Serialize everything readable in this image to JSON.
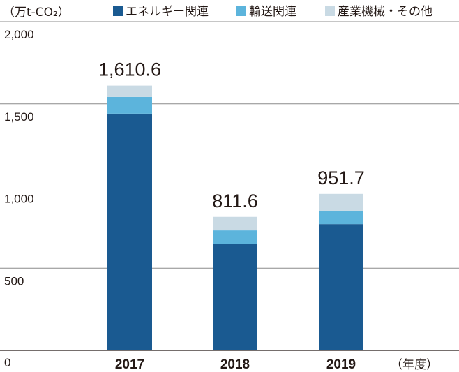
{
  "chart_data": {
    "type": "bar",
    "stacked": true,
    "ylabel": "（万t-CO₂）",
    "xunit": "（年度）",
    "categories": [
      "2017",
      "2018",
      "2019"
    ],
    "totals_labels": [
      "1,610.6",
      "811.6",
      "951.7"
    ],
    "series": [
      {
        "name": "エネルギー関連",
        "color": "#1a5a91",
        "values": [
          1440,
          648,
          768
        ]
      },
      {
        "name": "輸送関連",
        "color": "#5cb4dc",
        "values": [
          102,
          82,
          82
        ]
      },
      {
        "name": "産業機械・その他",
        "color": "#c9dae4",
        "values": [
          69,
          82,
          102
        ]
      }
    ],
    "ylim": [
      0,
      2000
    ],
    "yticks": [
      0,
      500,
      1000,
      1500,
      2000
    ],
    "ytick_labels": [
      "0",
      "500",
      "1,000",
      "1,500",
      "2,000"
    ],
    "grid": true,
    "legend_position": "top"
  }
}
